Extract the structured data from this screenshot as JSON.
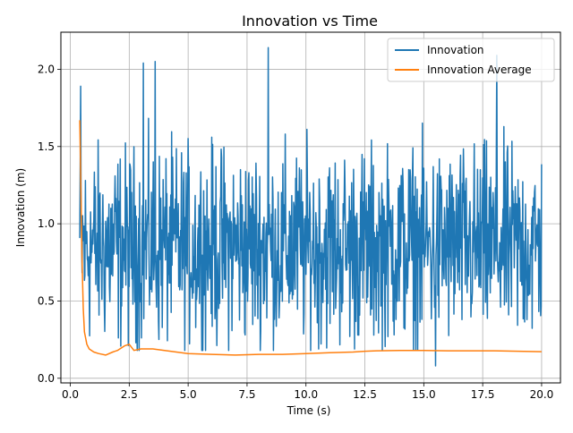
{
  "chart_data": {
    "type": "line",
    "title": "Innovation vs Time",
    "xlabel": "Time (s)",
    "ylabel": "Innovation (m)",
    "xlim": [
      -0.4,
      20.8
    ],
    "ylim": [
      -0.03,
      2.24
    ],
    "xticks": [
      0.0,
      2.5,
      5.0,
      7.5,
      10.0,
      12.5,
      15.0,
      17.5,
      20.0
    ],
    "xtick_labels": [
      "0.0",
      "2.5",
      "5.0",
      "7.5",
      "10.0",
      "12.5",
      "15.0",
      "17.5",
      "20.0"
    ],
    "yticks": [
      0.0,
      0.5,
      1.0,
      1.5,
      2.0
    ],
    "ytick_labels": [
      "0.0",
      "0.5",
      "1.0",
      "1.5",
      "2.0"
    ],
    "grid": true,
    "legend_position": "top-right",
    "series": [
      {
        "name": "Innovation",
        "color": "#1f77b4",
        "sample_rate_hz": 50,
        "x_start": 0.4,
        "x_end": 20.0,
        "approx_mean": 0.85,
        "approx_min": 0.08,
        "approx_max": 2.14,
        "peaks": [
          [
            0.45,
            1.89
          ],
          [
            3.1,
            2.04
          ],
          [
            3.6,
            2.05
          ],
          [
            8.4,
            2.14
          ],
          [
            18.1,
            2.09
          ],
          [
            15.5,
            0.08
          ]
        ]
      },
      {
        "name": "Innovation Average",
        "color": "#ff7f0e",
        "x": [
          0.4,
          0.45,
          0.5,
          0.55,
          0.6,
          0.7,
          0.8,
          1.0,
          1.2,
          1.5,
          1.8,
          2.0,
          2.3,
          2.5,
          2.7,
          3.0,
          3.5,
          4.0,
          4.5,
          5.0,
          6.0,
          7.0,
          8.0,
          9.0,
          10.0,
          11.0,
          12.0,
          12.5,
          13.0,
          14.0,
          15.0,
          16.0,
          17.0,
          18.0,
          19.0,
          20.0
        ],
        "y": [
          1.67,
          1.2,
          0.75,
          0.45,
          0.3,
          0.22,
          0.19,
          0.17,
          0.16,
          0.15,
          0.17,
          0.18,
          0.21,
          0.22,
          0.18,
          0.19,
          0.19,
          0.18,
          0.17,
          0.16,
          0.155,
          0.15,
          0.155,
          0.155,
          0.16,
          0.165,
          0.17,
          0.175,
          0.178,
          0.18,
          0.18,
          0.178,
          0.178,
          0.178,
          0.175,
          0.172
        ]
      }
    ]
  }
}
